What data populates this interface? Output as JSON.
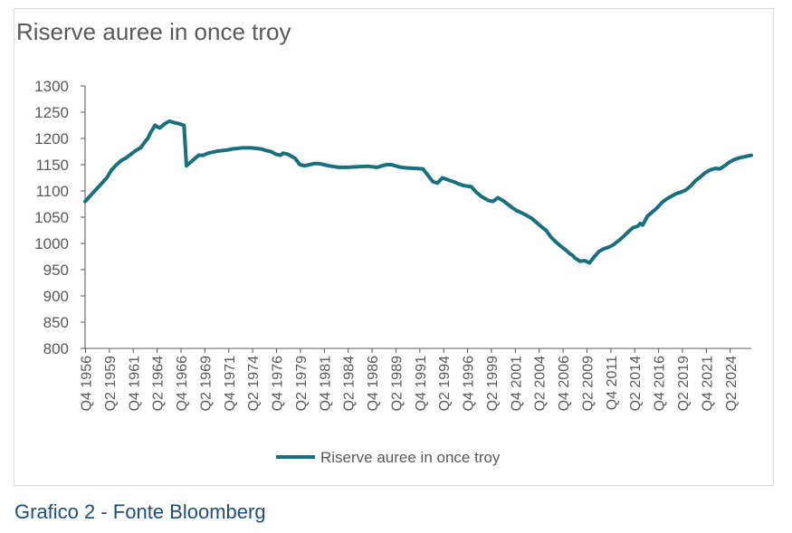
{
  "caption": "Grafico 2 - Fonte Bloomberg",
  "colors": {
    "series": "#17707d",
    "axis": "#595959",
    "text": "#595959",
    "caption": "#1f4e79"
  },
  "chart_data": {
    "type": "line",
    "title": "Riserve auree in once troy",
    "xlabel": "",
    "ylabel": "",
    "ylim": [
      800,
      1300
    ],
    "y_ticks": [
      1300,
      1250,
      1200,
      1150,
      1100,
      1050,
      1000,
      950,
      900,
      850,
      800
    ],
    "x_tick_labels": [
      "Q4 1956",
      "Q2 1959",
      "Q4 1961",
      "Q2 1964",
      "Q4 1966",
      "Q2 1969",
      "Q4 1971",
      "Q2 1974",
      "Q4 1976",
      "Q2 1979",
      "Q4 1981",
      "Q2 1984",
      "Q4 1986",
      "Q2 1989",
      "Q4 1991",
      "Q2 1994",
      "Q4 1996",
      "Q2 1999",
      "Q4 2001",
      "Q2 2004",
      "Q4 2006",
      "Q2 2009",
      "Q4 2011",
      "Q2 2014",
      "Q4 2016",
      "Q2 2019",
      "Q4 2021",
      "Q2 2024"
    ],
    "x_range": [
      1956.75,
      2025.75
    ],
    "grid": false,
    "legend": "bottom",
    "series": [
      {
        "name": "Riserve auree in once troy",
        "x": [
          1956.75,
          1957.5,
          1958.25,
          1959.0,
          1959.5,
          1960.0,
          1960.5,
          1961.0,
          1961.5,
          1962.0,
          1962.5,
          1963.0,
          1963.25,
          1963.5,
          1964.0,
          1964.25,
          1964.5,
          1965.0,
          1965.5,
          1966.0,
          1966.5,
          1967.0,
          1967.25,
          1968.0,
          1968.5,
          1969.0,
          1969.5,
          1970.0,
          1970.5,
          1971.0,
          1971.5,
          1972.0,
          1972.5,
          1973.0,
          1973.5,
          1974.0,
          1974.5,
          1975.0,
          1975.5,
          1976.0,
          1976.5,
          1977.0,
          1977.25,
          1977.75,
          1978.5,
          1979.0,
          1979.5,
          1980.0,
          1980.5,
          1981.0,
          1981.5,
          1982.0,
          1983.0,
          1984.0,
          1985.0,
          1986.0,
          1986.5,
          1987.0,
          1987.5,
          1988.0,
          1988.5,
          1989.0,
          1989.5,
          1990.0,
          1991.0,
          1991.75,
          1992.25,
          1992.75,
          1993.25,
          1993.75,
          1994.5,
          1995.0,
          1995.5,
          1996.0,
          1996.75,
          1997.25,
          1997.75,
          1998.5,
          1999.0,
          1999.5,
          2000.0,
          2000.5,
          2001.0,
          2001.5,
          2002.0,
          2002.5,
          2003.0,
          2003.5,
          2004.0,
          2004.5,
          2005.0,
          2005.5,
          2006.0,
          2006.5,
          2007.0,
          2007.25,
          2007.5,
          2008.0,
          2008.5,
          2009.0,
          2009.5,
          2010.0,
          2010.5,
          2011.0,
          2011.5,
          2012.0,
          2012.5,
          2013.0,
          2013.5,
          2014.0,
          2014.25,
          2014.5,
          2015.0,
          2015.5,
          2016.0,
          2016.5,
          2017.0,
          2017.5,
          2018.0,
          2018.5,
          2019.0,
          2019.5,
          2020.0,
          2020.5,
          2021.0,
          2021.5,
          2022.0,
          2022.5,
          2023.0,
          2023.5,
          2024.0,
          2024.5,
          2025.0,
          2025.75
        ],
        "values": [
          1080,
          1095,
          1110,
          1125,
          1140,
          1150,
          1158,
          1163,
          1170,
          1177,
          1182,
          1195,
          1200,
          1210,
          1225,
          1222,
          1220,
          1228,
          1233,
          1230,
          1228,
          1225,
          1148,
          1160,
          1168,
          1168,
          1172,
          1174,
          1176,
          1177,
          1178,
          1180,
          1181,
          1182,
          1182,
          1182,
          1181,
          1180,
          1177,
          1175,
          1170,
          1168,
          1172,
          1170,
          1162,
          1150,
          1148,
          1150,
          1152,
          1152,
          1150,
          1148,
          1145,
          1145,
          1146,
          1147,
          1146,
          1145,
          1148,
          1150,
          1150,
          1147,
          1145,
          1144,
          1143,
          1142,
          1130,
          1118,
          1115,
          1125,
          1120,
          1117,
          1113,
          1110,
          1108,
          1098,
          1090,
          1082,
          1080,
          1087,
          1082,
          1075,
          1068,
          1062,
          1058,
          1053,
          1048,
          1040,
          1032,
          1025,
          1012,
          1003,
          995,
          988,
          980,
          977,
          972,
          966,
          967,
          963,
          975,
          985,
          990,
          993,
          998,
          1005,
          1013,
          1022,
          1030,
          1033,
          1038,
          1035,
          1052,
          1060,
          1068,
          1078,
          1085,
          1090,
          1095,
          1098,
          1102,
          1110,
          1120,
          1127,
          1135,
          1140,
          1143,
          1142,
          1148,
          1155,
          1160,
          1163,
          1165,
          1168
        ]
      }
    ]
  }
}
